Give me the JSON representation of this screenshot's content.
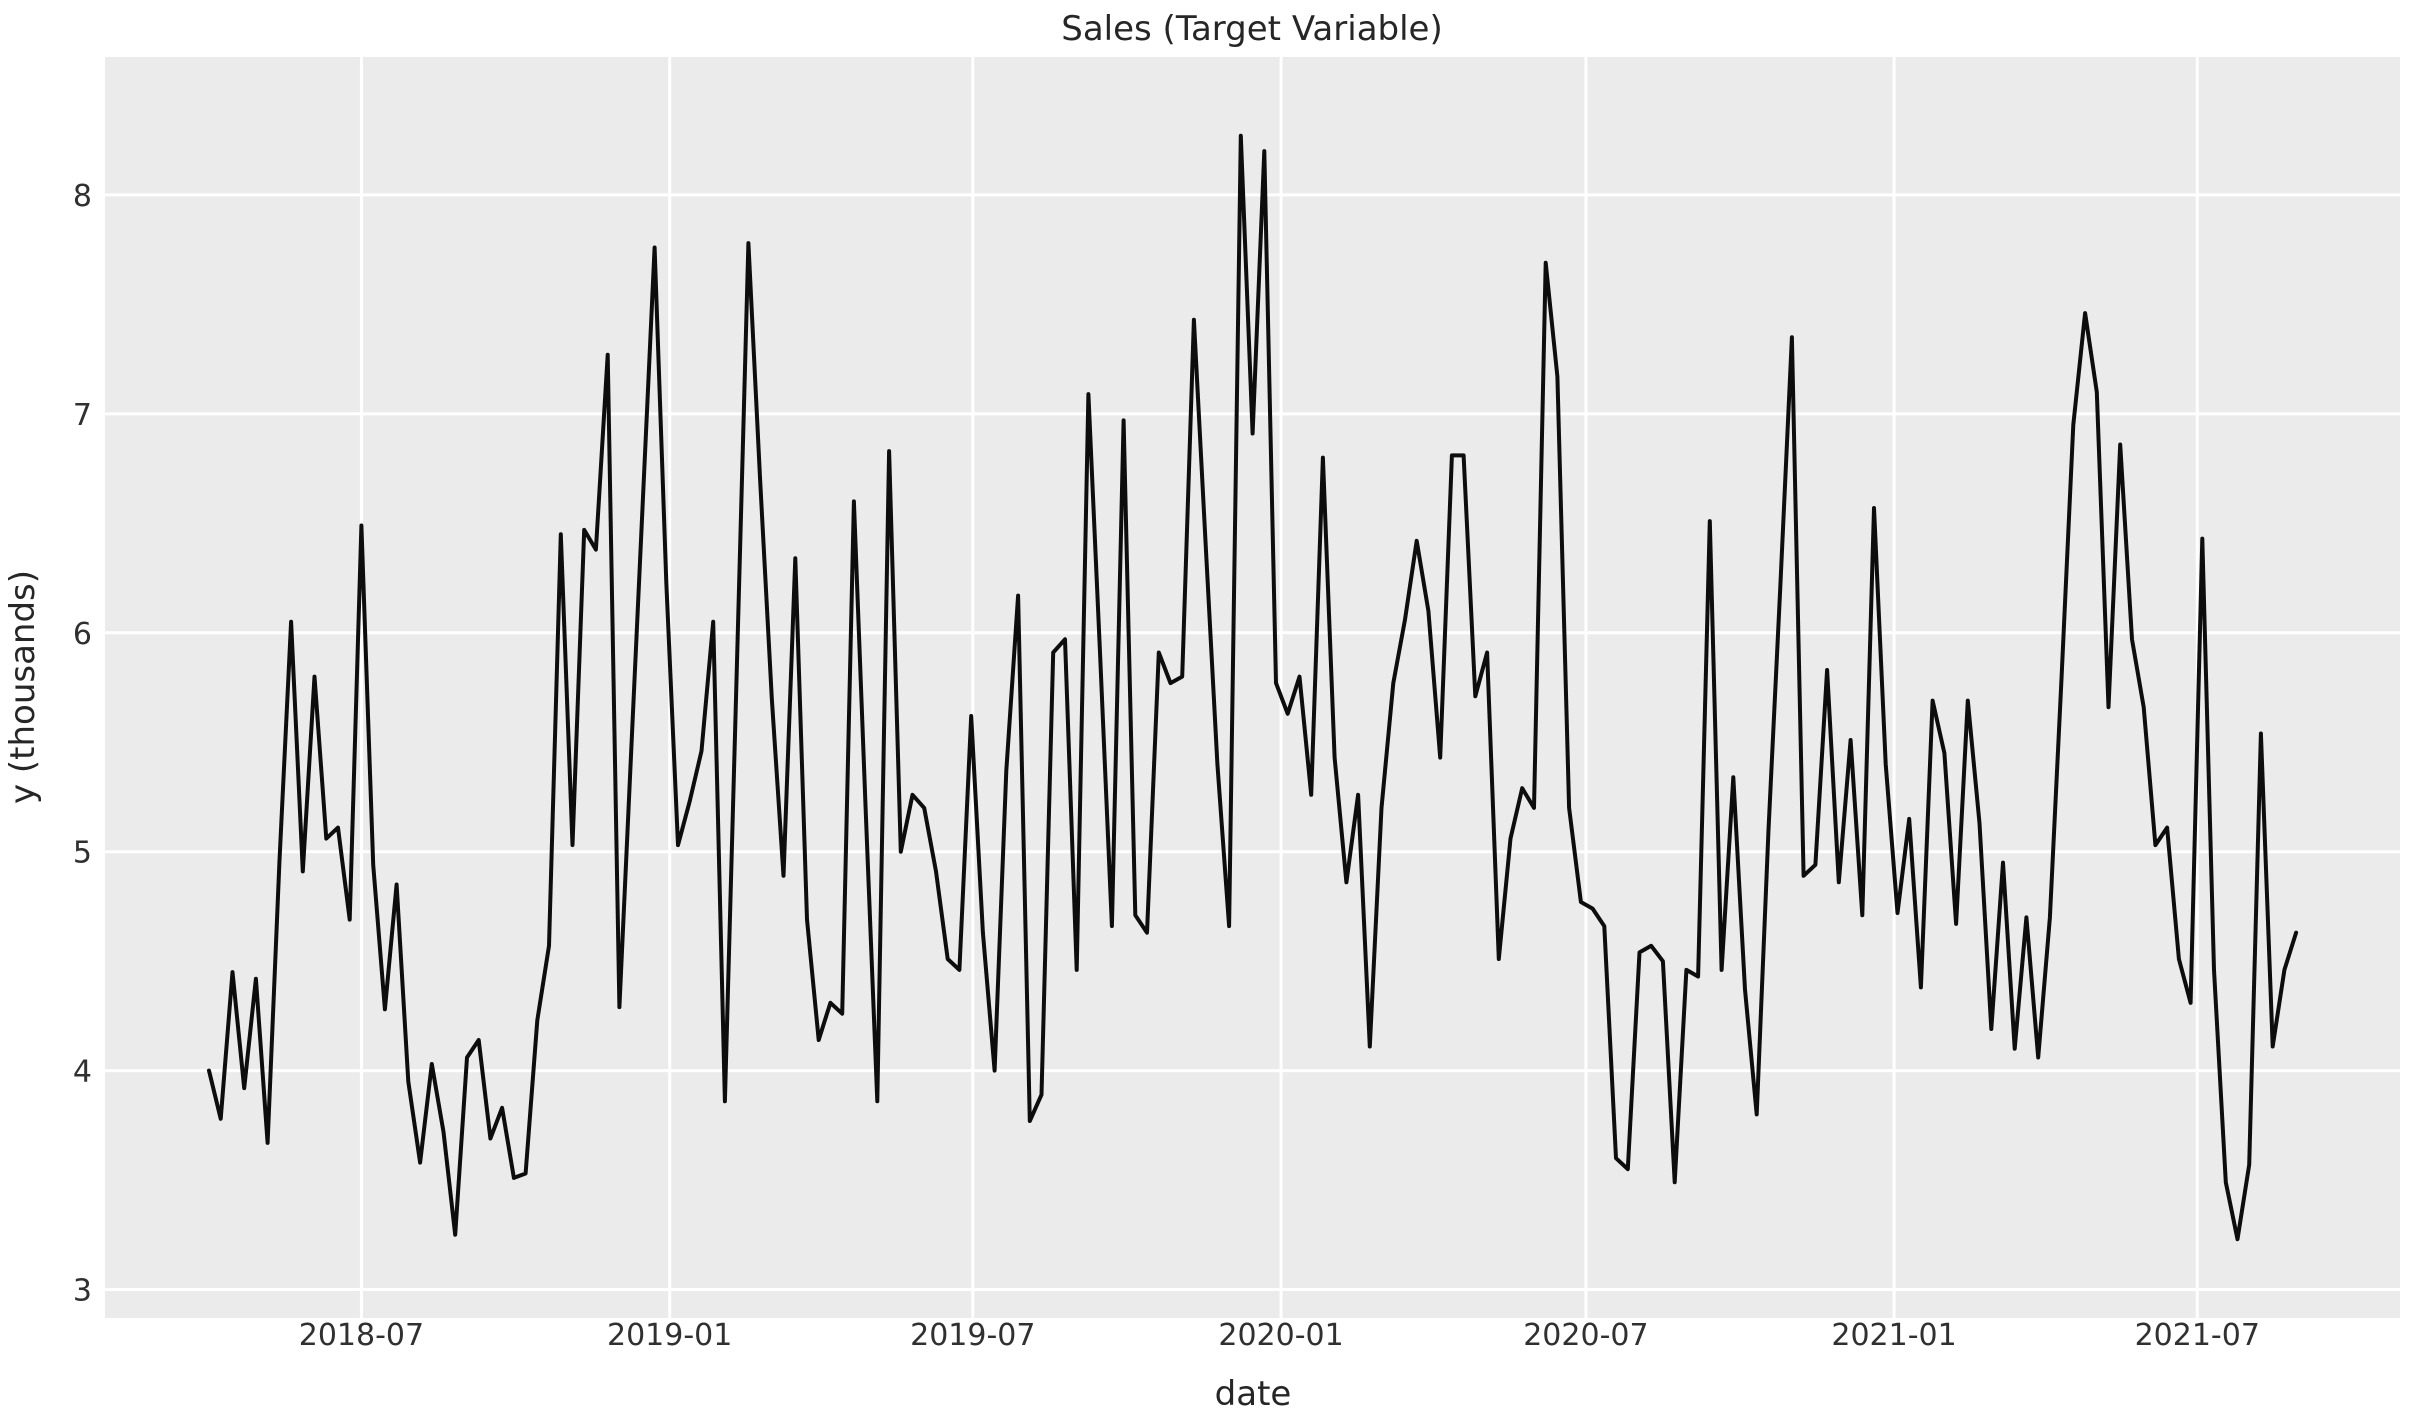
{
  "chart_data": {
    "type": "line",
    "title": "Sales (Target Variable)",
    "xlabel": "date",
    "ylabel": "y (thousands)",
    "legend": "none",
    "grid": true,
    "background_color": "#ebebeb",
    "grid_color": "#ffffff",
    "line_color": "#0d0d0d",
    "text_color": "#262626",
    "frequency": "weekly",
    "x_start_date": "2018-04-01",
    "x_end_date": "2021-08-29",
    "ylim": [
      2.87,
      8.63
    ],
    "y_ticks": [
      3,
      4,
      5,
      6,
      7,
      8
    ],
    "x_ticks": [
      {
        "label": "2018-07",
        "week_offset": 13.0
      },
      {
        "label": "2019-01",
        "week_offset": 39.29
      },
      {
        "label": "2019-07",
        "week_offset": 65.14
      },
      {
        "label": "2020-01",
        "week_offset": 91.43
      },
      {
        "label": "2020-07",
        "week_offset": 117.43
      },
      {
        "label": "2021-01",
        "week_offset": 143.71
      },
      {
        "label": "2021-07",
        "week_offset": 169.57
      }
    ],
    "series": [
      {
        "name": "y",
        "values": [
          4.0,
          3.78,
          4.45,
          3.92,
          4.42,
          3.67,
          4.95,
          6.05,
          4.91,
          5.8,
          5.06,
          5.11,
          4.69,
          6.49,
          4.94,
          4.28,
          4.85,
          3.95,
          3.58,
          4.03,
          3.72,
          3.25,
          4.06,
          4.14,
          3.69,
          3.83,
          3.51,
          3.53,
          4.23,
          4.57,
          6.45,
          5.03,
          6.47,
          6.38,
          7.27,
          4.29,
          5.45,
          6.6,
          7.76,
          6.23,
          5.03,
          5.23,
          5.46,
          6.05,
          3.86,
          5.8,
          7.78,
          6.7,
          5.7,
          4.89,
          6.34,
          4.69,
          4.14,
          4.31,
          4.26,
          6.6,
          5.2,
          3.86,
          6.83,
          5.0,
          5.26,
          5.2,
          4.91,
          4.51,
          4.46,
          5.62,
          4.63,
          4.0,
          5.37,
          6.17,
          3.77,
          3.89,
          5.91,
          5.97,
          4.46,
          7.09,
          5.9,
          4.66,
          6.97,
          4.71,
          4.63,
          5.91,
          5.77,
          5.8,
          7.43,
          6.4,
          5.4,
          4.66,
          8.27,
          6.91,
          8.2,
          5.77,
          5.63,
          5.8,
          5.26,
          6.8,
          5.43,
          4.86,
          5.26,
          4.11,
          5.2,
          5.77,
          6.06,
          6.42,
          6.1,
          5.43,
          6.81,
          6.81,
          5.71,
          5.91,
          4.51,
          5.06,
          5.29,
          5.2,
          7.69,
          7.17,
          5.2,
          4.77,
          4.74,
          4.66,
          3.6,
          3.55,
          4.54,
          4.57,
          4.5,
          3.49,
          4.46,
          4.43,
          6.51,
          4.46,
          5.34,
          4.37,
          3.8,
          5.1,
          6.2,
          7.35,
          4.89,
          4.94,
          5.83,
          4.86,
          5.51,
          4.71,
          6.57,
          5.4,
          4.72,
          5.15,
          4.38,
          5.69,
          5.45,
          4.67,
          5.69,
          5.13,
          4.19,
          4.95,
          4.1,
          4.7,
          4.06,
          4.7,
          5.8,
          6.95,
          7.46,
          7.1,
          5.66,
          6.86,
          5.97,
          5.66,
          5.03,
          5.11,
          4.51,
          4.31,
          6.43,
          4.46,
          3.49,
          3.23,
          3.57,
          5.54,
          4.11,
          4.46,
          4.63
        ]
      }
    ]
  }
}
